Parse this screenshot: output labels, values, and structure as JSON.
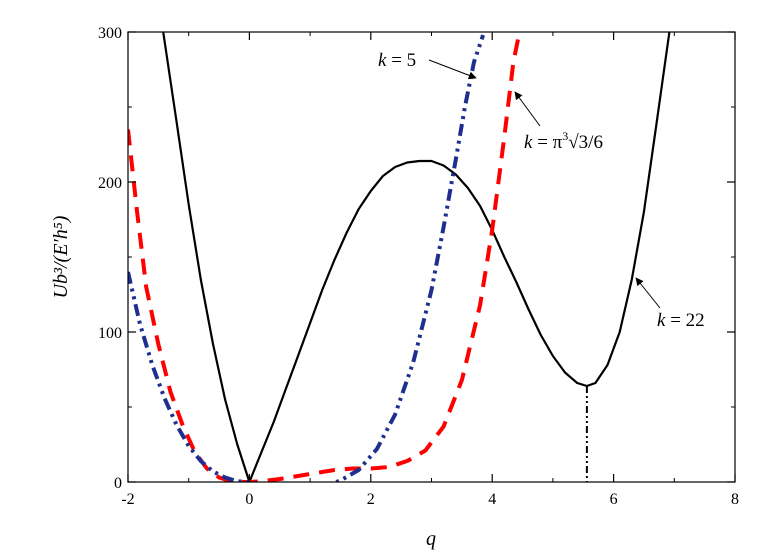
{
  "chart_data": {
    "type": "line",
    "title": "",
    "xlabel": "q",
    "ylabel": "Ub³/(E′h⁵)",
    "xlim": [
      -2,
      8
    ],
    "ylim": [
      0,
      300
    ],
    "xticks": [
      -2,
      0,
      2,
      4,
      6,
      8
    ],
    "yticks": [
      0,
      100,
      200,
      300
    ],
    "x_minor_ticks": [
      -1,
      1,
      3,
      5,
      7
    ],
    "y_minor_ticks": [
      50,
      150,
      250
    ],
    "grid": false,
    "legend": "none",
    "series": [
      {
        "name": "k = 22",
        "style": "solid",
        "color": "#000000",
        "x": [
          -1.42,
          -1.2,
          -1.0,
          -0.8,
          -0.6,
          -0.4,
          -0.2,
          0.0,
          0.2,
          0.4,
          0.6,
          0.8,
          1.0,
          1.2,
          1.4,
          1.6,
          1.8,
          2.0,
          2.2,
          2.4,
          2.6,
          2.8,
          3.0,
          3.2,
          3.4,
          3.6,
          3.8,
          4.0,
          4.2,
          4.4,
          4.6,
          4.8,
          5.0,
          5.2,
          5.4,
          5.56,
          5.7,
          5.9,
          6.1,
          6.3,
          6.5,
          6.7,
          6.92
        ],
        "values": [
          300,
          240,
          185,
          135,
          92,
          55,
          25,
          0,
          20,
          40,
          62,
          84,
          106,
          128,
          148,
          166,
          182,
          194,
          204,
          210,
          213,
          214,
          214,
          211,
          205,
          196,
          184,
          168,
          150,
          133,
          115,
          98,
          84,
          73,
          66,
          64,
          66,
          78,
          100,
          135,
          180,
          237,
          300
        ]
      },
      {
        "name": "k = π³√3/6",
        "style": "dashed",
        "color": "#ff0000",
        "x": [
          -2.0,
          -1.85,
          -1.7,
          -1.5,
          -1.3,
          -1.1,
          -0.9,
          -0.7,
          -0.5,
          -0.3,
          -0.1,
          0.0,
          0.2,
          0.5,
          0.8,
          1.1,
          1.4,
          1.7,
          2.0,
          2.3,
          2.6,
          2.9,
          3.2,
          3.5,
          3.8,
          4.0,
          4.2,
          4.35,
          4.45
        ],
        "values": [
          235,
          180,
          130,
          92,
          60,
          38,
          20,
          9,
          3,
          0.5,
          0,
          0,
          0.5,
          2,
          4,
          6,
          8,
          9,
          9,
          10,
          14,
          21,
          37,
          68,
          118,
          168,
          230,
          280,
          300
        ]
      },
      {
        "name": "k = 5",
        "style": "dash-dot-dot",
        "color": "#1f2f8f",
        "x": [
          -2.0,
          -1.8,
          -1.6,
          -1.4,
          -1.2,
          -1.0,
          -0.8,
          -0.6,
          -0.4,
          -0.2,
          0.0,
          0.3,
          0.6,
          0.9,
          1.2,
          1.5,
          1.8,
          2.1,
          2.4,
          2.7,
          3.0,
          3.2,
          3.4,
          3.55,
          3.7,
          3.85
        ],
        "values": [
          140,
          105,
          78,
          56,
          38,
          24,
          14,
          7,
          3,
          0.5,
          0,
          -2,
          -4,
          -4,
          -3,
          1,
          8,
          22,
          45,
          80,
          128,
          170,
          215,
          250,
          280,
          298
        ]
      }
    ],
    "annotations": [
      {
        "text_left": "k",
        "text_right": " = 5",
        "series": "k = 5",
        "point": [
          3.7,
          270
        ]
      },
      {
        "text_left": "k",
        "text_right": " = π",
        "sup": "3",
        "text_tail": "√3/6",
        "series": "k = π³√3/6",
        "point": [
          4.35,
          262
        ]
      },
      {
        "text_left": "k",
        "text_right": " = 22",
        "series": "k = 22",
        "point": [
          6.35,
          137
        ]
      }
    ],
    "vertical_marker": {
      "x": 5.56,
      "y_top": 64,
      "y_bottom": 0
    }
  }
}
